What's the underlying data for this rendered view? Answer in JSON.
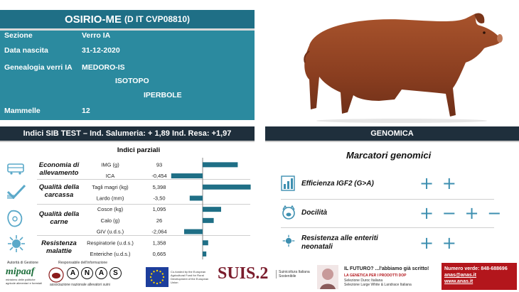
{
  "header": {
    "name": "OSIRIO-ME",
    "code": "(D IT CVP08810)"
  },
  "info": {
    "sezione_label": "Sezione",
    "sezione_value": "Verro IA",
    "nascita_label": "Data nascita",
    "nascita_value": "31-12-2020",
    "genealogia_label": "Genealogia verri IA",
    "genealogia_values": [
      "MEDORO-IS",
      "ISOTOPO",
      "IPERBOLE"
    ],
    "mammelle_label": "Mammelle",
    "mammelle_value": "12"
  },
  "sib_bar": "Indici  SIB TEST – Ind. Salumeria: + 1,89   Ind. Resa: +1,97",
  "genomica_bar": "GENOMICA",
  "indici_parziali": "Indici parziali",
  "categories": [
    {
      "label": "Economia di allevamento",
      "icon": "cart-icon"
    },
    {
      "label": "Qualità della carcassa",
      "icon": "checkmark-icon"
    },
    {
      "label": "Qualità della carne",
      "icon": "meat-icon"
    },
    {
      "label": "Resistenza malattie",
      "icon": "virus-icon"
    }
  ],
  "chart_data": {
    "type": "bar",
    "orientation": "horizontal",
    "categories": [
      "IMG (g)",
      "ICA",
      "Tagli magri (kg)",
      "Lardo (mm)",
      "Cosce (kg)",
      "Calo (g)",
      "GIV (u.d.s.)",
      "Respiratorie (u.d.s.)",
      "Enteriche (u.d.s.)"
    ],
    "labels": [
      "93",
      "-0,454",
      "5,398",
      "-3,50",
      "1,095",
      "26",
      "-2,064",
      "1,358",
      "0,665"
    ],
    "values": [
      1.9,
      -1.7,
      2.6,
      -0.7,
      1.0,
      0.6,
      -1.0,
      0.3,
      0.2
    ],
    "colors": {
      "bar": "#1f6f86"
    }
  },
  "genomica": {
    "title": "Marcatori genomici",
    "markers": [
      {
        "label": "Efficienza IGF2 (G>A)",
        "glyphs": "+ +",
        "icon": "bar-chart-icon"
      },
      {
        "label": "Docilità",
        "glyphs": "+ − + −",
        "icon": "pig-face-icon"
      },
      {
        "label": "Resistenza alle enteriti neonatali",
        "glyphs": "+ +",
        "icon": "virus-icon"
      }
    ]
  },
  "footer": {
    "autorita": "Autorità di Gestione",
    "responsabile": "Responsabile dell'informazione",
    "mipaaf": "mipaaf",
    "mipaaf_sub": "ministero delle politiche agricole alimentari e forestali",
    "anas_letters": [
      "A",
      "N",
      "A",
      "S"
    ],
    "anas_sub": "associazione nazionale allevatori suini",
    "eu_text": "Co-funded by the European Agricultural Fund for Rural Development of the European Union",
    "suis": "SUIS.2",
    "suis_sub": "Suinicoltura Italiana Sostenibile",
    "futuro_title": "IL FUTURO? ...l'abbiamo già scritto!",
    "futuro_sub": "LA GENETICA PER I PRODOTTI DOP",
    "futuro_line1": "Selezione Duroc Italiana",
    "futuro_line2": "Selezione Large White & Landrace Italiana",
    "numero_verde": "Numero verde: 848-688696",
    "email": "anas@anas.it",
    "web": "www.anas.it"
  },
  "colors": {
    "title_bar": "#1f6f86",
    "info_card": "#2b8a9f",
    "dark_bar": "#1f2f3c",
    "accent": "#3d8fb0",
    "red_box": "#b3161c"
  }
}
